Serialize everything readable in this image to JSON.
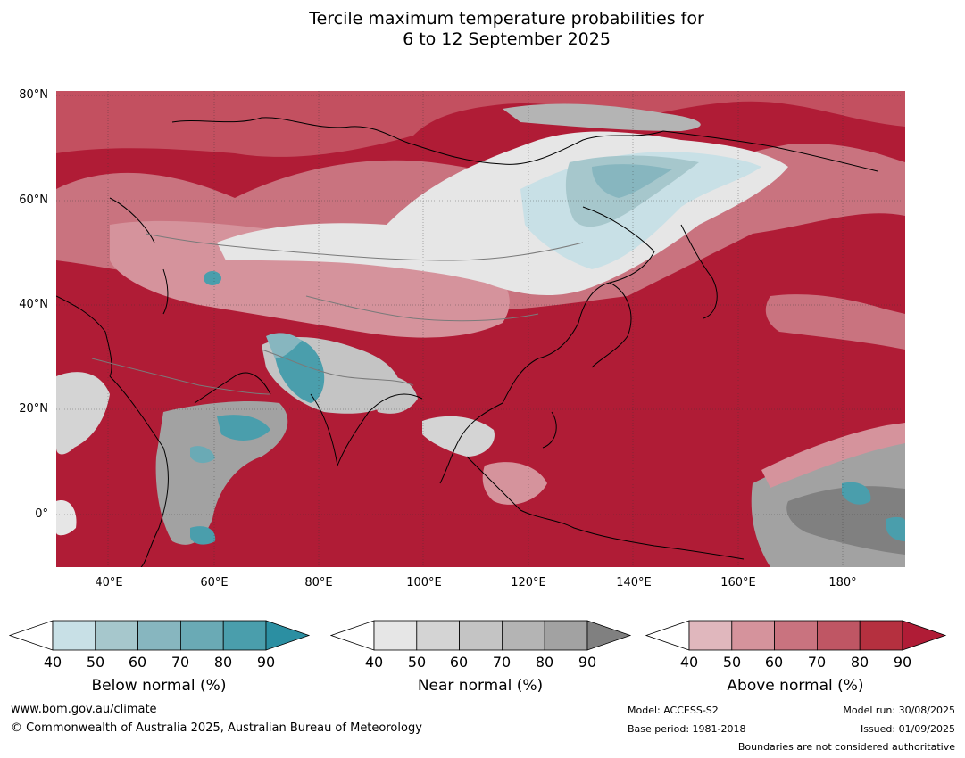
{
  "title": {
    "line1": "Tercile maximum temperature probabilities for",
    "line2": "6 to 12 September 2025"
  },
  "map": {
    "lat_labels": [
      "80°N",
      "60°N",
      "40°N",
      "20°N",
      "0°"
    ],
    "lon_labels": [
      "40°E",
      "60°E",
      "80°E",
      "100°E",
      "120°E",
      "140°E",
      "160°E",
      "180°"
    ],
    "extent": {
      "lon_min": 30,
      "lon_max": 191,
      "lat_min": -10,
      "lat_max": 81
    }
  },
  "colorbars": [
    {
      "label": "Below normal (%)",
      "ticks": [
        "40",
        "50",
        "60",
        "70",
        "80",
        "90"
      ],
      "colors": [
        "#ffffff",
        "#c8e0e6",
        "#a6c7cc",
        "#87b6bf",
        "#6aaab5",
        "#4a9eac",
        "#2b8fa2"
      ]
    },
    {
      "label": "Near normal (%)",
      "ticks": [
        "40",
        "50",
        "60",
        "70",
        "80",
        "90"
      ],
      "colors": [
        "#ffffff",
        "#e6e6e6",
        "#d4d4d4",
        "#c4c4c4",
        "#b4b4b4",
        "#a2a2a2",
        "#808080"
      ]
    },
    {
      "label": "Above normal (%)",
      "ticks": [
        "40",
        "50",
        "60",
        "70",
        "80",
        "90"
      ],
      "colors": [
        "#ffffff",
        "#e0b7bd",
        "#d5939c",
        "#c9737f",
        "#bf5664",
        "#b5303f",
        "#b01c36"
      ]
    }
  ],
  "footer": {
    "url": "www.bom.gov.au/climate",
    "copyright": "© Commonwealth of Australia 2025, Australian Bureau of Meteorology",
    "model": "Model: ACCESS-S2",
    "base_period": "Base period: 1981-2018",
    "model_run": "Model run: 30/08/2025",
    "issued": "Issued: 01/09/2025",
    "boundaries": "Boundaries are not considered authoritative"
  }
}
